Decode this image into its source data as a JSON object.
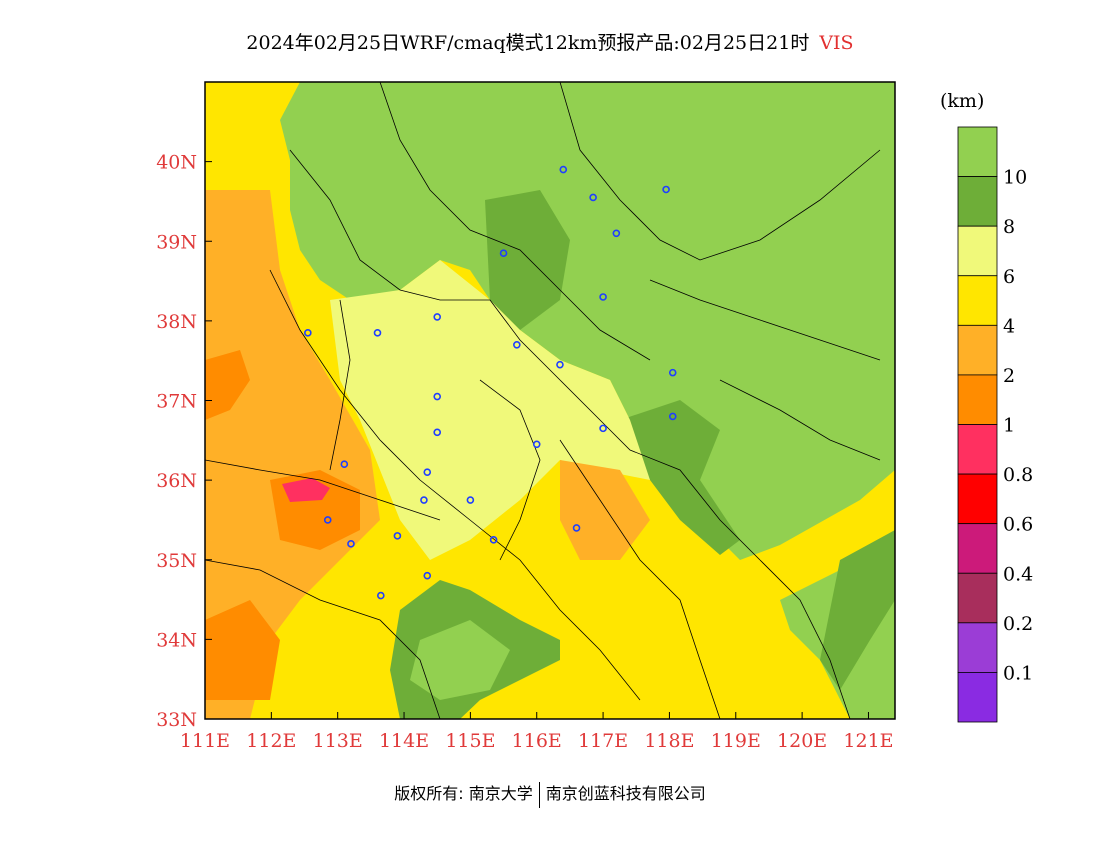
{
  "title": {
    "main": "2024年02月25日WRF/cmaq模式12km预报产品:02月25日21时",
    "variable": "VIS"
  },
  "map": {
    "lat_range": [
      33,
      41
    ],
    "lon_range": [
      111,
      121.4
    ],
    "lat_ticks": [
      "33N",
      "34N",
      "35N",
      "36N",
      "37N",
      "38N",
      "39N",
      "40N"
    ],
    "lon_ticks": [
      "111E",
      "112E",
      "113E",
      "114E",
      "115E",
      "116E",
      "117E",
      "118E",
      "119E",
      "120E",
      "121E"
    ],
    "colors": {
      "gt10": "#92d050",
      "8to10": "#6eae38",
      "6to8": "#f0f97a",
      "4to6": "#ffe600",
      "2to4": "#ffb027",
      "1to2": "#ff8c00",
      "tick": "#e03a3a",
      "station": "#1f3fff"
    },
    "stations": [
      {
        "lon": 116.4,
        "lat": 39.9
      },
      {
        "lon": 117.2,
        "lat": 39.1
      },
      {
        "lon": 115.5,
        "lat": 38.85
      },
      {
        "lon": 114.5,
        "lat": 38.05
      },
      {
        "lon": 112.55,
        "lat": 37.85
      },
      {
        "lon": 113.6,
        "lat": 37.85
      },
      {
        "lon": 115.7,
        "lat": 37.7
      },
      {
        "lon": 116.35,
        "lat": 37.45
      },
      {
        "lon": 118.05,
        "lat": 37.35
      },
      {
        "lon": 114.5,
        "lat": 37.05
      },
      {
        "lon": 118.05,
        "lat": 36.8
      },
      {
        "lon": 117.0,
        "lat": 36.65
      },
      {
        "lon": 114.5,
        "lat": 36.6
      },
      {
        "lon": 116.0,
        "lat": 36.45
      },
      {
        "lon": 113.1,
        "lat": 36.2
      },
      {
        "lon": 114.35,
        "lat": 36.1
      },
      {
        "lon": 114.3,
        "lat": 35.75
      },
      {
        "lon": 115.0,
        "lat": 35.75
      },
      {
        "lon": 112.85,
        "lat": 35.5
      },
      {
        "lon": 116.6,
        "lat": 35.4
      },
      {
        "lon": 113.9,
        "lat": 35.3
      },
      {
        "lon": 113.2,
        "lat": 35.2
      },
      {
        "lon": 115.35,
        "lat": 35.25
      },
      {
        "lon": 114.35,
        "lat": 34.8
      },
      {
        "lon": 113.65,
        "lat": 34.55
      },
      {
        "lon": 116.85,
        "lat": 39.55
      },
      {
        "lon": 117.95,
        "lat": 39.65
      },
      {
        "lon": 117.0,
        "lat": 38.3
      }
    ]
  },
  "colorbar": {
    "unit": "(km)",
    "labels": [
      "10",
      "8",
      "6",
      "4",
      "2",
      "1",
      "0.8",
      "0.6",
      "0.4",
      "0.2",
      "0.1"
    ],
    "colors": [
      "#92d050",
      "#6eae38",
      "#f0f97a",
      "#ffe600",
      "#ffb027",
      "#ff8c00",
      "#ff3060",
      "#ff0000",
      "#cc1a7a",
      "#a82e5c",
      "#9b3dd6",
      "#8a2be2"
    ]
  },
  "footer": {
    "left": "版权所有: 南京大学",
    "right": "南京创蓝科技有限公司"
  }
}
